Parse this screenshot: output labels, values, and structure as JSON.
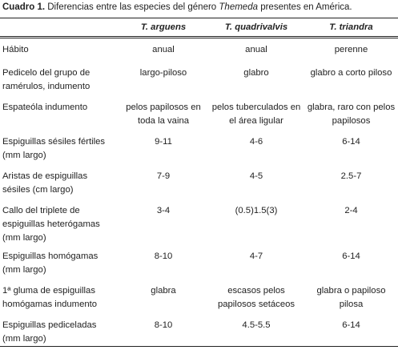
{
  "caption": {
    "label": "Cuadro 1.",
    "text_before": "Diferencias entre las especies del género",
    "genus": "Themeda",
    "text_after": "presentes en América."
  },
  "table": {
    "header": [
      "T. arguens",
      "T. quadrivalvis",
      "T. triandra"
    ],
    "rows": [
      [
        "Hábito",
        "anual",
        "anual",
        "perenne"
      ],
      [
        "Pedicelo del grupo de ramérulos, indumento",
        "largo-piloso",
        "glabro",
        "glabro a corto piloso"
      ],
      [
        "Espateóla indumento",
        "pelos papilosos en toda la vaina",
        "pelos tuberculados en el área ligular",
        "glabra, raro con pelos papilosos"
      ],
      [
        "Espiguillas sésiles fértiles (mm largo)",
        "9-11",
        "4-6",
        "6-14"
      ],
      [
        "Aristas de espiguillas sésiles (cm largo)",
        "7-9",
        "4-5",
        "2.5-7"
      ],
      [
        "Callo del triplete de espiguillas heterógamas (mm largo)",
        "3-4",
        "(0.5)1.5(3)",
        "2-4"
      ],
      [
        "Espiguillas homógamas (mm largo)",
        "8-10",
        "4-7",
        "6-14"
      ],
      [
        "1ª gluma de espiguillas homógamas indumento",
        "glabra",
        "escasos pelos papilosos setáceos",
        "glabra o papiloso pilosa"
      ],
      [
        "Espiguillas pediceladas (mm largo)",
        "8-10",
        "4.5-5.5",
        "6-14"
      ]
    ]
  }
}
